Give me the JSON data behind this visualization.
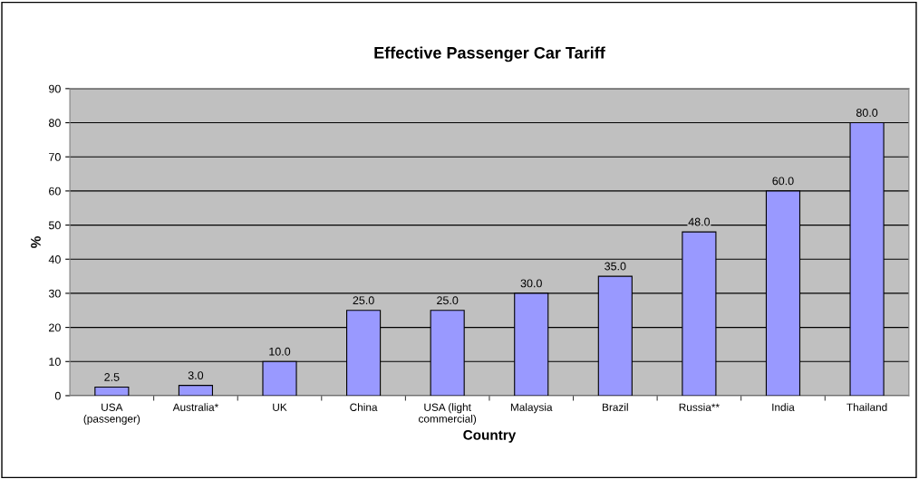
{
  "chart_data": {
    "type": "bar",
    "title": "Effective Passenger Car Tariff",
    "xlabel": "Country",
    "ylabel": "%",
    "categories": [
      "USA (passenger)",
      "Australia*",
      "UK",
      "China",
      "USA (light commercial)",
      "Malaysia",
      "Brazil",
      "Russia**",
      "India",
      "Thailand"
    ],
    "values": [
      2.5,
      3.0,
      10,
      25,
      25,
      30,
      35,
      48,
      60,
      80
    ],
    "value_labels": [
      "2.5",
      "3.0",
      "10.0",
      "25.0",
      "25.0",
      "30.0",
      "35.0",
      "48.0",
      "60.0",
      "80.0"
    ],
    "color": "#9999ff",
    "ylim": [
      0,
      90
    ],
    "yticks": [
      0,
      10,
      20,
      30,
      40,
      50,
      60,
      70,
      80,
      90
    ],
    "grid": "y"
  }
}
